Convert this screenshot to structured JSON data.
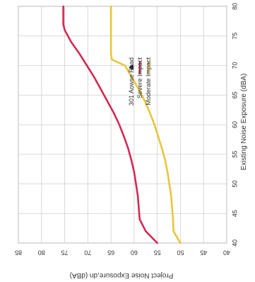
{
  "chart_data": {
    "type": "line",
    "rotated": "90deg clockwise",
    "xlabel": "Existing Noise Exposure (dBA)",
    "ylabel": "Project Noise Exposure,dn (dBA)",
    "xlim": [
      40,
      80
    ],
    "ylim": [
      40,
      85
    ],
    "xticks": [
      "40",
      "45",
      "50",
      "55",
      "60",
      "65",
      "70",
      "75",
      "80"
    ],
    "yticks": [
      "40",
      "45",
      "50",
      "55",
      "60",
      "65",
      "70",
      "75",
      "80",
      "85"
    ],
    "grid": true,
    "legend_placement": "top-right",
    "series": [
      {
        "name": "Moderate Impact",
        "color": "#e8c63a",
        "x": [
          40,
          42,
          44,
          46,
          48,
          50,
          52,
          54,
          56,
          58,
          60,
          62,
          64,
          66,
          68,
          70,
          71,
          72,
          74,
          76,
          78,
          80
        ],
        "y": [
          50.0,
          51.5,
          51.6,
          51.8,
          52.0,
          52.4,
          52.8,
          53.3,
          54.0,
          54.8,
          55.6,
          56.6,
          57.7,
          59.0,
          60.5,
          62.0,
          64.8,
          65.0,
          65.0,
          65.0,
          65.0,
          65.0
        ]
      },
      {
        "name": "Severe Impact",
        "color": "#d22a53",
        "x": [
          40,
          42,
          44,
          46,
          48,
          50,
          52,
          54,
          56,
          58,
          60,
          62,
          64,
          66,
          68,
          70,
          72,
          74,
          76,
          77,
          78,
          80
        ],
        "y": [
          55.0,
          57.5,
          58.8,
          59.0,
          59.2,
          59.6,
          60.0,
          60.6,
          61.3,
          62.2,
          63.2,
          64.4,
          65.8,
          67.2,
          68.6,
          70.2,
          71.8,
          73.6,
          75.0,
          75.3,
          75.3,
          75.3
        ]
      }
    ],
    "legend": [
      {
        "label": "Moderate Impact",
        "marker": "line",
        "color": "#e8c63a"
      },
      {
        "label": "Severe Impact",
        "marker": "line",
        "color": "#d22a53"
      },
      {
        "label": "301 Aowse Road",
        "marker": "triangle",
        "color": "#222222"
      }
    ]
  }
}
